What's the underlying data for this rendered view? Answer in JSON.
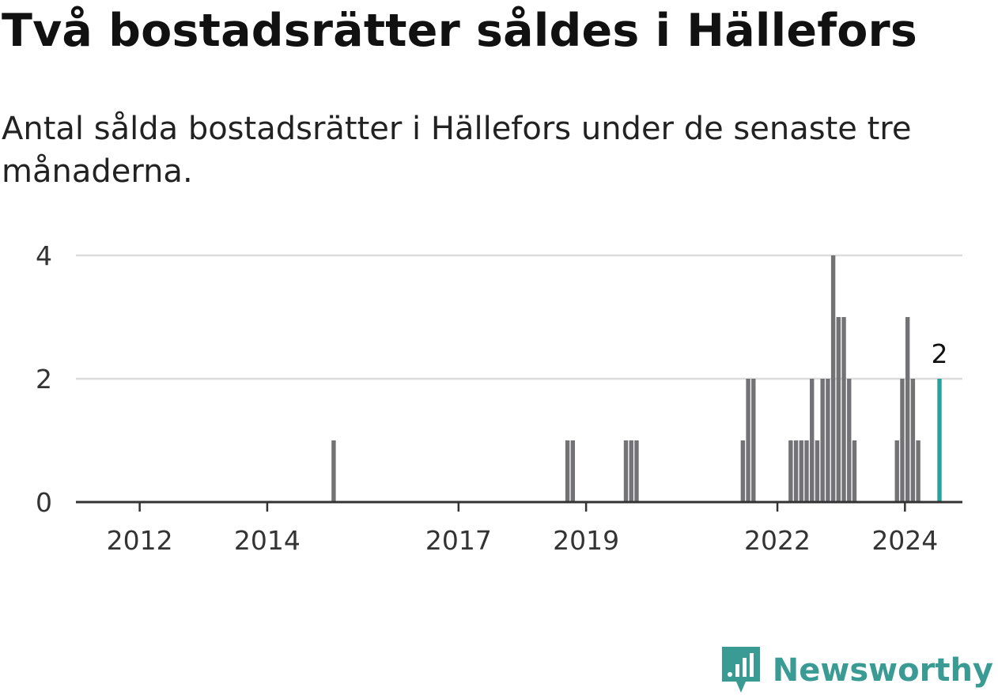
{
  "header": {
    "title": "Två bostadsrätter såldes i Hällefors",
    "subtitle": "Antal sålda bostadsrätter i Hällefors under de senaste tre månaderna."
  },
  "brand": {
    "name": "Newsworthy",
    "icon": "newsworthy-logo-icon",
    "color": "#3a9b94"
  },
  "chart_data": {
    "type": "bar",
    "title": "Två bostadsrätter såldes i Hällefors",
    "subtitle": "Antal sålda bostadsrätter i Hällefors under de senaste tre månaderna.",
    "xlabel": "",
    "ylabel": "",
    "ylim": [
      0,
      4
    ],
    "yticks": [
      "0",
      "2",
      "4"
    ],
    "xticks": [
      "2012",
      "2014",
      "2017",
      "2019",
      "2022",
      "2024"
    ],
    "grid": true,
    "bar_color": "#737277",
    "highlight_color": "#27a199",
    "highlight_label": "2",
    "x": [
      "2015-01",
      "2018-09",
      "2018-10",
      "2019-08",
      "2019-09",
      "2019-10",
      "2021-06",
      "2021-07",
      "2021-08",
      "2022-03",
      "2022-04",
      "2022-05",
      "2022-06",
      "2022-07",
      "2022-08",
      "2022-09",
      "2022-10",
      "2022-11",
      "2022-12",
      "2023-01",
      "2023-02",
      "2023-03",
      "2023-11",
      "2023-12",
      "2024-01",
      "2024-02",
      "2024-03",
      "2024-07"
    ],
    "values": [
      1,
      1,
      1,
      1,
      1,
      1,
      1,
      2,
      2,
      1,
      1,
      1,
      1,
      2,
      1,
      2,
      2,
      4,
      3,
      3,
      2,
      1,
      1,
      2,
      3,
      2,
      1,
      2
    ],
    "highlight_index": 27
  }
}
